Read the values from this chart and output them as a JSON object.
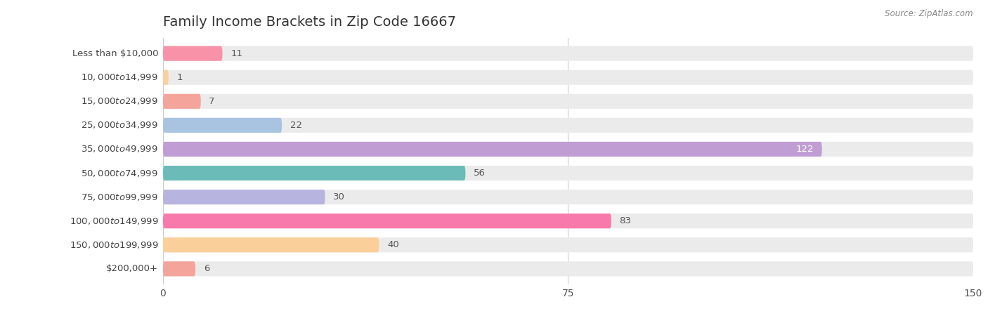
{
  "title": "Family Income Brackets in Zip Code 16667",
  "source": "Source: ZipAtlas.com",
  "categories": [
    "Less than $10,000",
    "$10,000 to $14,999",
    "$15,000 to $24,999",
    "$25,000 to $34,999",
    "$35,000 to $49,999",
    "$50,000 to $74,999",
    "$75,000 to $99,999",
    "$100,000 to $149,999",
    "$150,000 to $199,999",
    "$200,000+"
  ],
  "values": [
    11,
    1,
    7,
    22,
    122,
    56,
    30,
    83,
    40,
    6
  ],
  "colors": [
    "#F892A8",
    "#FBCF9A",
    "#F4A49A",
    "#A8C4E0",
    "#C09ED4",
    "#6BBCB8",
    "#B8B4E0",
    "#F87AAC",
    "#FBCF9A",
    "#F4A49A"
  ],
  "xlim": [
    0,
    150
  ],
  "xticks": [
    0,
    75,
    150
  ],
  "bar_background_color": "#ebebeb",
  "title_fontsize": 14,
  "label_fontsize": 9.5,
  "value_fontsize": 9.5,
  "white_label_values": [
    122
  ]
}
